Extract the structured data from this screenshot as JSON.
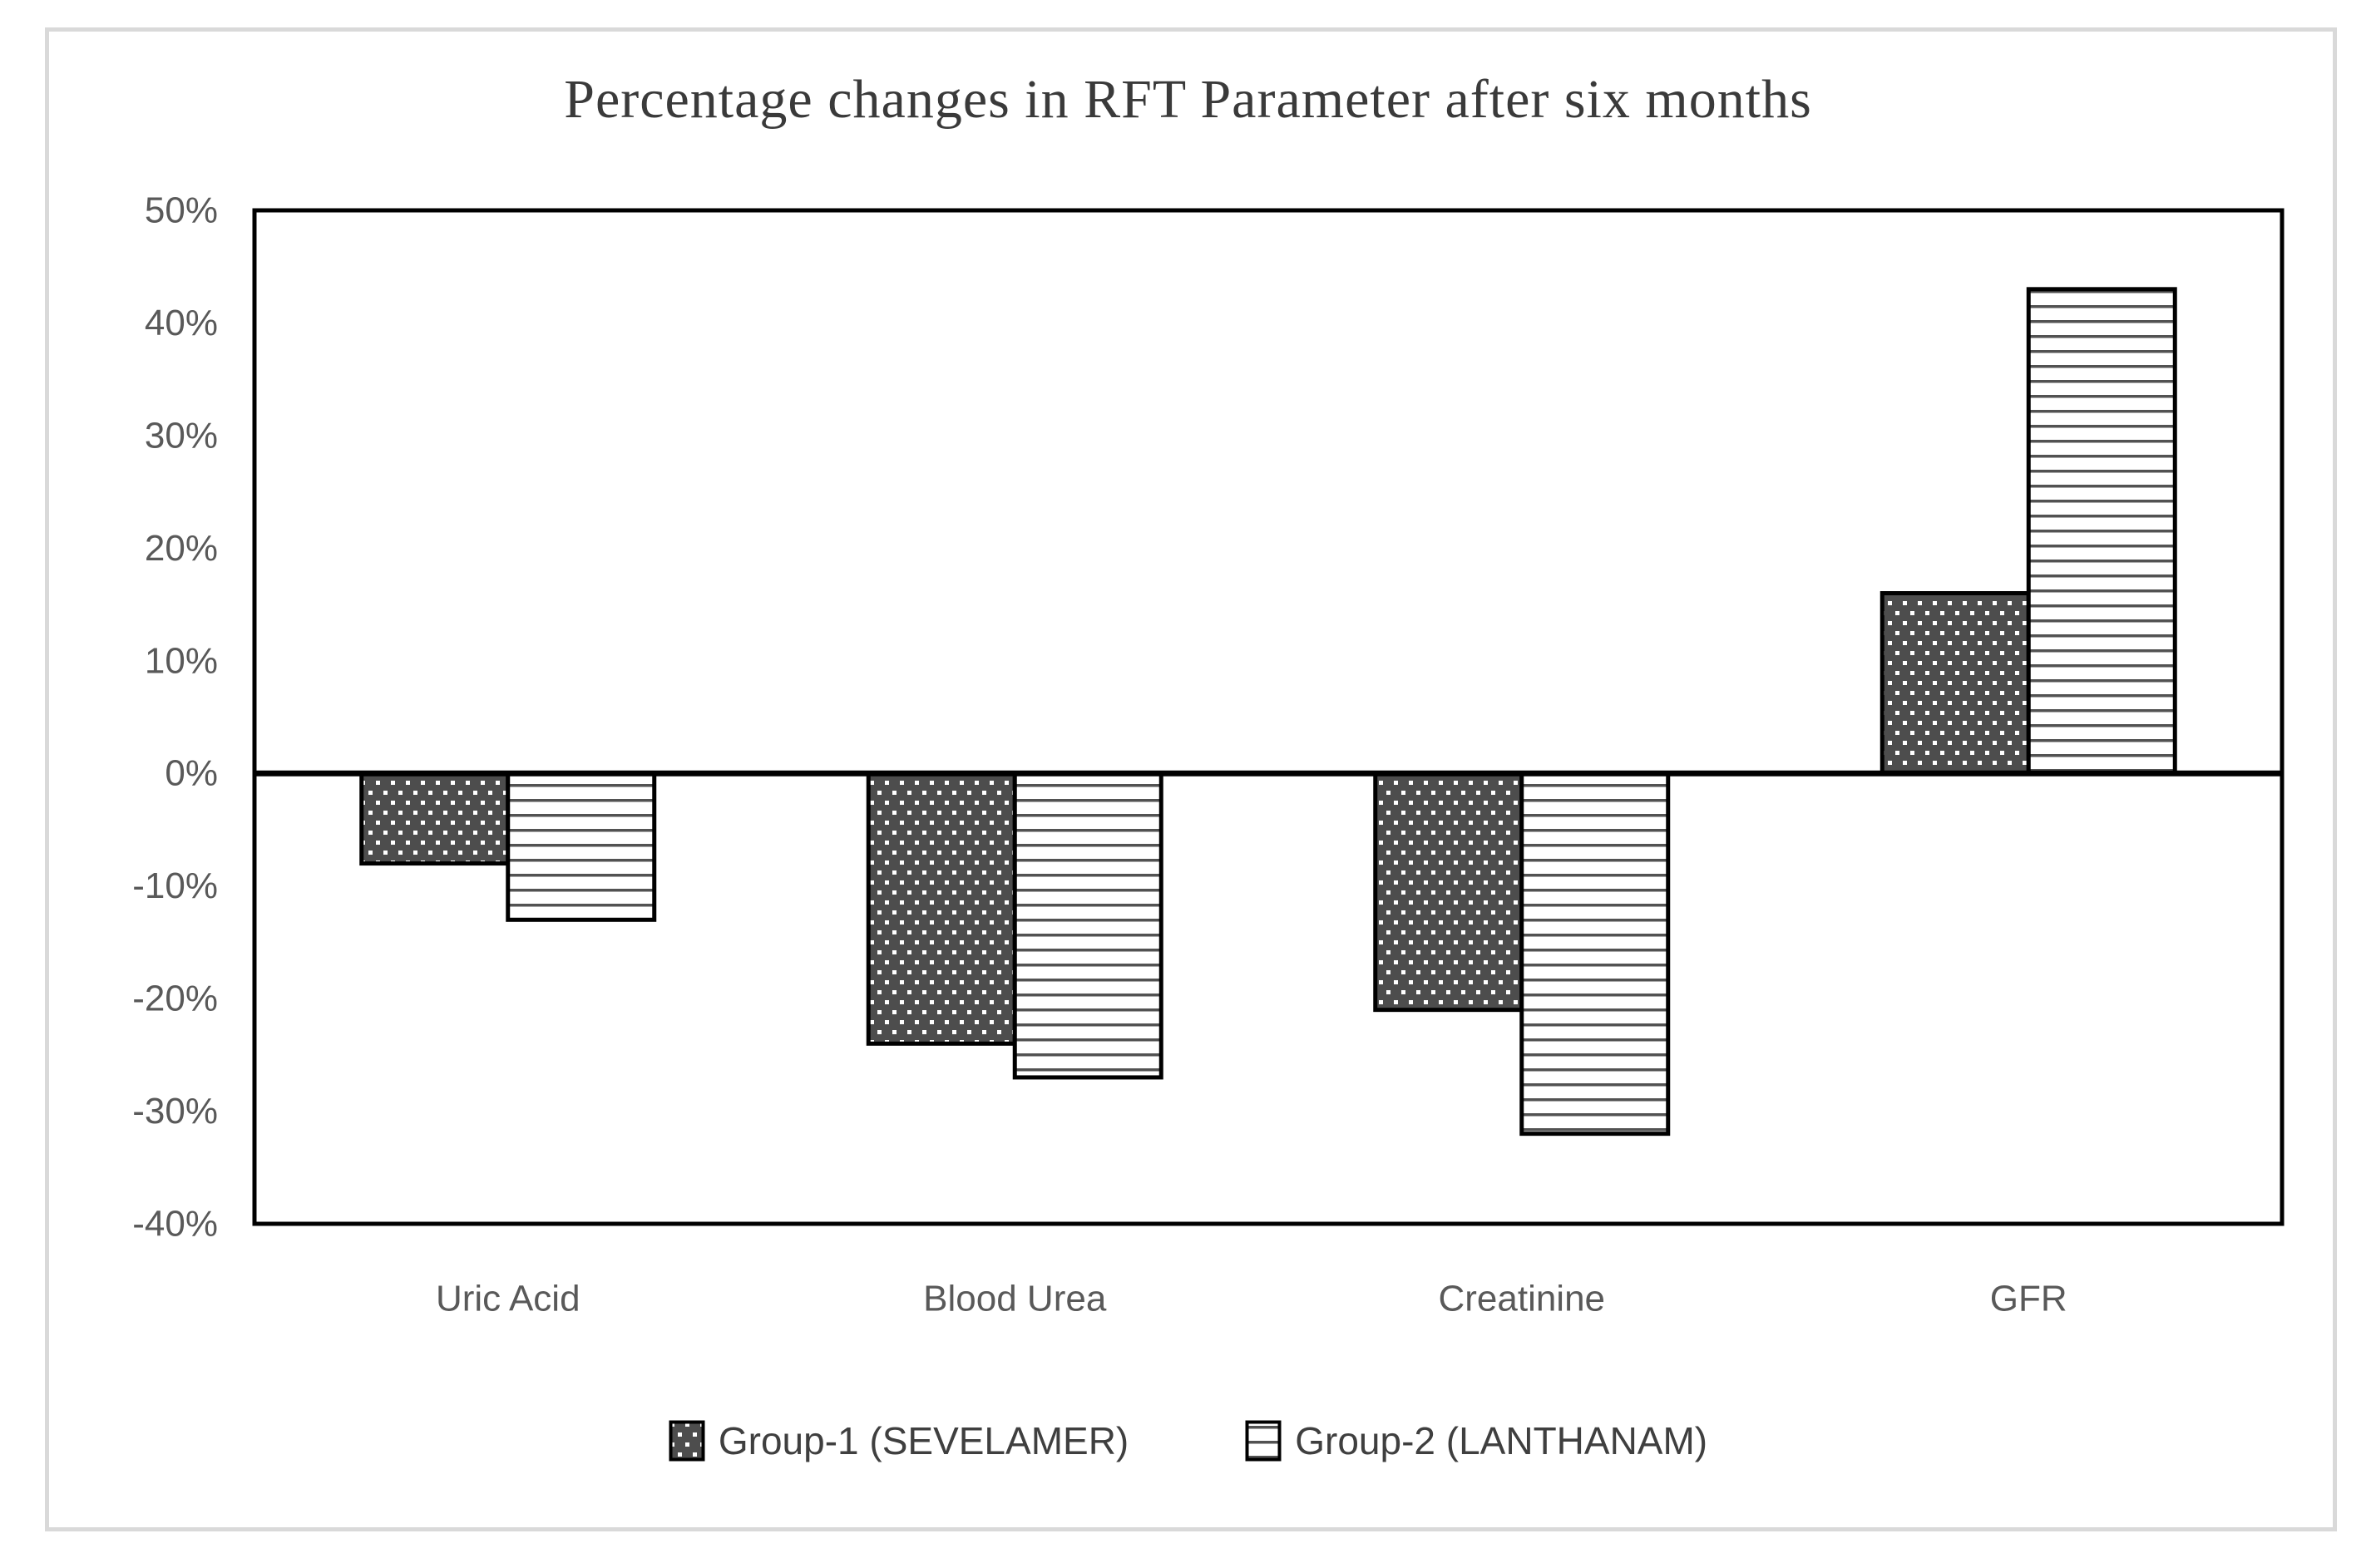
{
  "figure": {
    "background_color": "#ffffff",
    "border_color": "#d9d9d9"
  },
  "chart": {
    "title": "Percentage changes in RFT Parameter after six months"
  },
  "colors": {
    "axis_line": "#000000",
    "bar_border": "#000000",
    "tick_label": "#595959",
    "title_text": "#3a3a3a",
    "legend_text": "#3f3f3f"
  },
  "chart_data": {
    "type": "bar",
    "title": "Percentage changes in RFT Parameter after six months",
    "xlabel": "",
    "ylabel": "",
    "categories": [
      "Uric Acid",
      "Blood Urea",
      "Creatinine",
      "GFR"
    ],
    "series": [
      {
        "name": "Group-1 (SEVELAMER)",
        "values": [
          -8,
          -24,
          -21,
          16
        ],
        "pattern": "dots",
        "fill": "#4d4d4d",
        "dot_color": "#ffffff"
      },
      {
        "name": "Group-2 (LANTHANAM)",
        "values": [
          -13,
          -27,
          -32,
          43
        ],
        "pattern": "horizontal-stripes",
        "fill": "#ffffff",
        "stripe_color": "#525252"
      }
    ],
    "ylim": [
      -40,
      50
    ],
    "ytick_step": 10,
    "ytick_labels": [
      "50%",
      "40%",
      "30%",
      "20%",
      "10%",
      "0%",
      "-10%",
      "-20%",
      "-30%",
      "-40%"
    ],
    "grid": false,
    "legend_position": "bottom"
  }
}
